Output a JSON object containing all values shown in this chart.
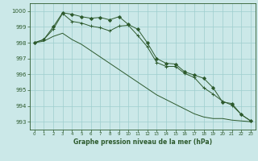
{
  "title": "Graphe pression niveau de la mer (hPa)",
  "background_color": "#cbe8e8",
  "grid_color": "#9ecece",
  "line_color": "#2d5a2d",
  "xlim": [
    -0.5,
    23.5
  ],
  "ylim": [
    992.5,
    1000.5
  ],
  "yticks": [
    993,
    994,
    995,
    996,
    997,
    998,
    999,
    1000
  ],
  "xticks": [
    0,
    1,
    2,
    3,
    4,
    5,
    6,
    7,
    8,
    9,
    10,
    11,
    12,
    13,
    14,
    15,
    16,
    17,
    18,
    19,
    20,
    21,
    22,
    23
  ],
  "series": [
    {
      "x": [
        0,
        1,
        2,
        3,
        4,
        5,
        6,
        7,
        8,
        9,
        10,
        11,
        12,
        13,
        14,
        15,
        16,
        17,
        18,
        19,
        20,
        21,
        22,
        23
      ],
      "y": [
        998.0,
        998.2,
        999.0,
        999.9,
        999.8,
        999.65,
        999.55,
        999.6,
        999.45,
        999.65,
        999.15,
        998.85,
        998.0,
        997.0,
        996.7,
        996.65,
        996.15,
        995.95,
        995.75,
        995.15,
        994.25,
        994.15,
        993.45,
        993.05
      ],
      "marker": "D",
      "markersize": 2.0,
      "lw": 0.7
    },
    {
      "x": [
        0,
        1,
        2,
        3,
        4,
        5,
        6,
        7,
        8,
        9,
        10,
        11,
        12,
        13,
        14,
        15,
        16,
        17,
        18,
        19,
        20,
        21,
        22,
        23
      ],
      "y": [
        998.0,
        998.2,
        998.85,
        999.85,
        999.35,
        999.25,
        999.05,
        998.95,
        998.75,
        999.05,
        999.1,
        998.45,
        997.75,
        996.75,
        996.5,
        996.5,
        996.05,
        995.8,
        995.15,
        994.75,
        994.3,
        994.05,
        993.45,
        993.05
      ],
      "marker": "+",
      "markersize": 3.5,
      "lw": 0.7
    },
    {
      "x": [
        0,
        1,
        2,
        3,
        4,
        5,
        6,
        7,
        8,
        9,
        10,
        11,
        12,
        13,
        14,
        15,
        16,
        17,
        18,
        19,
        20,
        21,
        22,
        23
      ],
      "y": [
        998.0,
        998.1,
        998.4,
        998.6,
        998.2,
        997.9,
        997.5,
        997.1,
        996.7,
        996.3,
        995.9,
        995.5,
        995.1,
        994.7,
        994.4,
        994.1,
        993.8,
        993.5,
        993.3,
        993.2,
        993.2,
        993.1,
        993.05,
        993.0
      ],
      "marker": null,
      "markersize": 0,
      "lw": 0.7
    }
  ]
}
